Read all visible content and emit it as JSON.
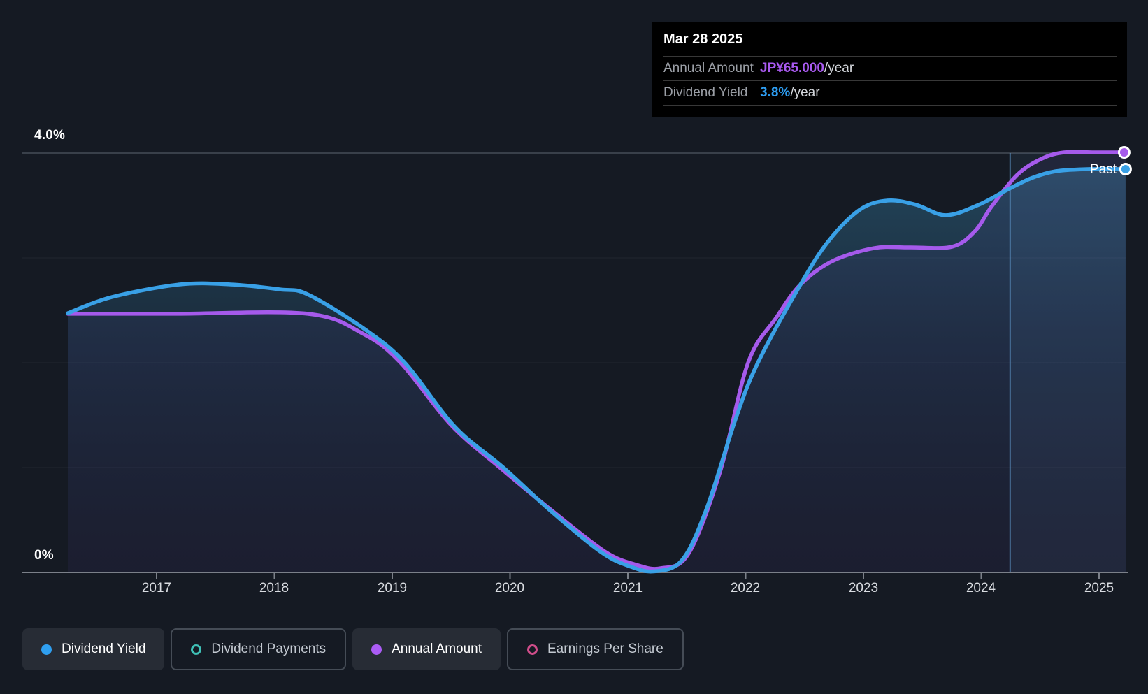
{
  "tooltip": {
    "title": "Mar 28 2025",
    "rows": [
      {
        "label": "Annual Amount",
        "value": "JP¥65.000",
        "suffix": "/year",
        "color": "#a95af0"
      },
      {
        "label": "Dividend Yield",
        "value": "3.8%",
        "suffix": "/year",
        "color": "#2d9cf0"
      }
    ]
  },
  "axis": {
    "y_top_label": "4.0%",
    "y_bottom_label": "0%",
    "x_ticks": [
      "2017",
      "2018",
      "2019",
      "2020",
      "2021",
      "2022",
      "2023",
      "2024",
      "2025"
    ]
  },
  "past_label": "Past",
  "legend": [
    {
      "label": "Dividend Yield",
      "marker": "filled",
      "color": "#2f9ff0",
      "active": true
    },
    {
      "label": "Dividend Payments",
      "marker": "open",
      "color": "#3fc1b7",
      "active": false
    },
    {
      "label": "Annual Amount",
      "marker": "filled",
      "color": "#ab5cf5",
      "active": true
    },
    {
      "label": "Earnings Per Share",
      "marker": "open",
      "color": "#cf4d8a",
      "active": false
    }
  ],
  "colors": {
    "background": "#151a23",
    "tooltip_background": "#000000",
    "yield_line": "#39a0e6",
    "amount_line": "#a55aeb",
    "gridline": "rgba(255,255,255,0.055)",
    "top_gridline": "#39404a",
    "axis_line": "#7b8089",
    "past_band": "rgba(115,175,235,0.065)",
    "past_divider": "rgba(100,158,212,0.6)"
  },
  "chart_data": {
    "type": "line",
    "x_range": [
      2016.25,
      2025.23
    ],
    "y_range": [
      0,
      4
    ],
    "y_unit": "percent",
    "y_gridlines": [
      1,
      2,
      3,
      4
    ],
    "y_axis_labels_shown": [
      "0%",
      "4.0%"
    ],
    "x_tick_years": [
      2017,
      2018,
      2019,
      2020,
      2021,
      2022,
      2023,
      2024,
      2025
    ],
    "past_band_start_x": 2024.245,
    "legend_position": "bottom",
    "series": [
      {
        "name": "Dividend Yield",
        "color": "#39a0e6",
        "area_fill": "blue-gradient",
        "end_marker": true,
        "end_value": "3.8%/year",
        "points": [
          [
            2016.246,
            2.473
          ],
          [
            2016.62,
            2.627
          ],
          [
            2017.196,
            2.747
          ],
          [
            2017.629,
            2.747
          ],
          [
            2018.044,
            2.7
          ],
          [
            2018.282,
            2.653
          ],
          [
            2018.757,
            2.327
          ],
          [
            2019.107,
            2.0
          ],
          [
            2019.528,
            1.393
          ],
          [
            2019.943,
            1.0
          ],
          [
            2020.359,
            0.573
          ],
          [
            2020.774,
            0.193
          ],
          [
            2021.012,
            0.06
          ],
          [
            2021.219,
            0.01
          ],
          [
            2021.457,
            0.113
          ],
          [
            2021.664,
            0.593
          ],
          [
            2021.914,
            1.46
          ],
          [
            2022.104,
            2.0
          ],
          [
            2022.466,
            2.747
          ],
          [
            2022.703,
            3.16
          ],
          [
            2022.97,
            3.46
          ],
          [
            2023.208,
            3.547
          ],
          [
            2023.445,
            3.507
          ],
          [
            2023.7,
            3.407
          ],
          [
            2023.979,
            3.507
          ],
          [
            2024.216,
            3.647
          ],
          [
            2024.424,
            3.76
          ],
          [
            2024.632,
            3.827
          ],
          [
            2024.899,
            3.847
          ],
          [
            2025.225,
            3.847
          ]
        ]
      },
      {
        "name": "Annual Amount",
        "color": "#a55aeb",
        "area_fill": "purple-faint",
        "end_marker": true,
        "end_value": "JP¥65.000/year",
        "points": [
          [
            2016.246,
            2.467
          ],
          [
            2017.154,
            2.467
          ],
          [
            2018.282,
            2.467
          ],
          [
            2018.757,
            2.273
          ],
          [
            2019.071,
            2.0
          ],
          [
            2019.499,
            1.407
          ],
          [
            2019.914,
            1.0
          ],
          [
            2020.359,
            0.587
          ],
          [
            2020.804,
            0.2
          ],
          [
            2021.071,
            0.073
          ],
          [
            2021.279,
            0.04
          ],
          [
            2021.516,
            0.18
          ],
          [
            2021.783,
            0.96
          ],
          [
            2022.021,
            2.0
          ],
          [
            2022.258,
            2.427
          ],
          [
            2022.466,
            2.747
          ],
          [
            2022.733,
            2.967
          ],
          [
            2023.089,
            3.093
          ],
          [
            2023.386,
            3.1
          ],
          [
            2023.754,
            3.107
          ],
          [
            2023.95,
            3.26
          ],
          [
            2024.086,
            3.487
          ],
          [
            2024.306,
            3.793
          ],
          [
            2024.514,
            3.947
          ],
          [
            2024.704,
            4.007
          ],
          [
            2024.959,
            4.007
          ],
          [
            2025.225,
            4.007
          ]
        ]
      }
    ]
  }
}
